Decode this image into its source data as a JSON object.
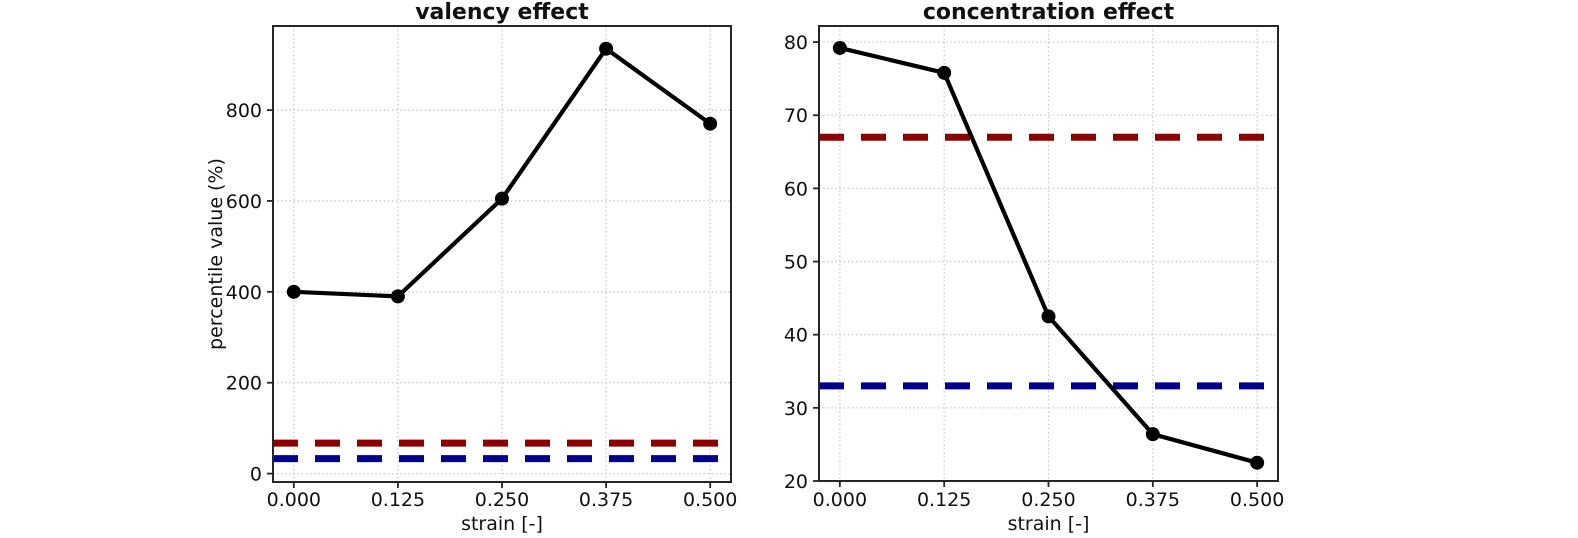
{
  "figure": {
    "background_color": "#ffffff",
    "series_color": "#000000",
    "upper_reference_color": "#8b0000",
    "lower_reference_color": "#00008b",
    "grid_color": "#c9c9c9"
  },
  "chart_data": [
    {
      "type": "line",
      "title": "valency effect",
      "xlabel": "strain [-]",
      "ylabel": "percentile value (%)",
      "x": [
        0.0,
        0.125,
        0.25,
        0.375,
        0.5
      ],
      "xtick_labels": [
        "0.000",
        "0.125",
        "0.250",
        "0.375",
        "0.500"
      ],
      "values": [
        400,
        390,
        605,
        935,
        770
      ],
      "yticks": [
        0,
        200,
        400,
        600,
        800
      ],
      "ytick_labels": [
        "0",
        "200",
        "400",
        "600",
        "800"
      ],
      "xlim": [
        -0.025,
        0.525
      ],
      "ylim": [
        -18.5,
        985
      ],
      "grid": true,
      "legend": "none",
      "series_color": "#000000",
      "hlines": [
        {
          "name": "upper-reference",
          "value": 67,
          "color": "#8b0000",
          "style": "dashed"
        },
        {
          "name": "lower-reference",
          "value": 33,
          "color": "#00008b",
          "style": "dashed"
        }
      ]
    },
    {
      "type": "line",
      "title": "concentration effect",
      "xlabel": "strain [-]",
      "ylabel": "",
      "x": [
        0.0,
        0.125,
        0.25,
        0.375,
        0.5
      ],
      "xtick_labels": [
        "0.000",
        "0.125",
        "0.250",
        "0.375",
        "0.500"
      ],
      "values": [
        79.2,
        75.8,
        42.5,
        26.4,
        22.5
      ],
      "yticks": [
        20,
        30,
        40,
        50,
        60,
        70,
        80
      ],
      "ytick_labels": [
        "20",
        "30",
        "40",
        "50",
        "60",
        "70",
        "80"
      ],
      "xlim": [
        -0.025,
        0.525
      ],
      "ylim": [
        20,
        82.2
      ],
      "grid": true,
      "legend": "none",
      "series_color": "#000000",
      "hlines": [
        {
          "name": "upper-reference",
          "value": 67,
          "color": "#8b0000",
          "style": "dashed"
        },
        {
          "name": "lower-reference",
          "value": 33,
          "color": "#00008b",
          "style": "dashed"
        }
      ]
    }
  ]
}
